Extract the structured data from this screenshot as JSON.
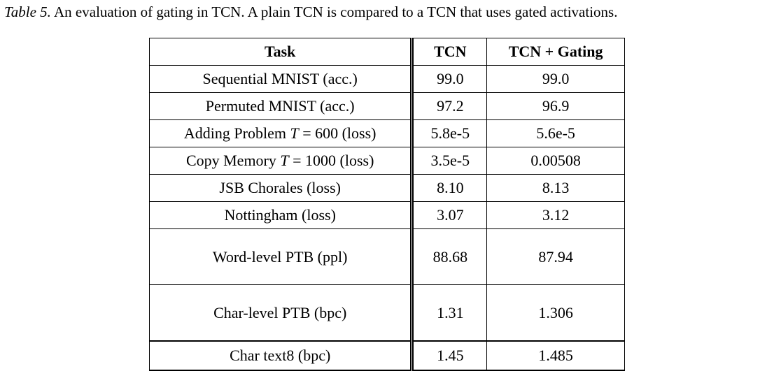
{
  "caption": {
    "label": "Table 5.",
    "text": "An evaluation of gating in TCN. A plain TCN is compared to a TCN that uses gated activations."
  },
  "table": {
    "headers": [
      "Task",
      "TCN",
      "TCN + Gating"
    ],
    "rows": [
      {
        "task": "Sequential MNIST (acc.)",
        "tcn": "99.0",
        "gating": "99.0",
        "best": [
          "tcn",
          "gating"
        ]
      },
      {
        "task": "Permuted MNIST (acc.)",
        "tcn": "97.2",
        "gating": "96.9",
        "best": [
          "tcn"
        ]
      },
      {
        "task_pre": "Adding Problem ",
        "task_var": "T",
        "task_post": " = 600 (loss)",
        "tcn": "5.8e-5",
        "gating": "5.6e-5",
        "best": [
          "tcn",
          "gating"
        ]
      },
      {
        "task_pre": "Copy Memory ",
        "task_var": "T",
        "task_post": " = 1000 (loss)",
        "tcn": "3.5e-5",
        "gating": "0.00508",
        "best": [
          "tcn"
        ]
      },
      {
        "task": "JSB Chorales (loss)",
        "tcn": "8.10",
        "gating": "8.13",
        "best": [
          "tcn"
        ]
      },
      {
        "task": "Nottingham (loss)",
        "tcn": "3.07",
        "gating": "3.12",
        "best": [
          "tcn"
        ]
      },
      {
        "task": "Word-level PTB (ppl)",
        "tcn": "88.68",
        "gating": "87.94",
        "best": [
          "gating"
        ]
      },
      {
        "task": "Char-level PTB (bpc)",
        "tcn": "1.31",
        "gating": "1.306",
        "best": [
          "gating"
        ]
      },
      {
        "task": "Char text8 (bpc)",
        "tcn": "1.45",
        "gating": "1.485",
        "best": [
          "tcn"
        ]
      }
    ]
  }
}
